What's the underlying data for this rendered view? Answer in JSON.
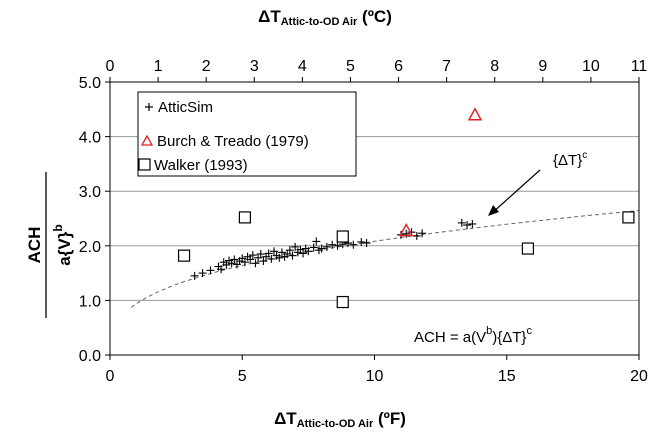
{
  "chart_data": {
    "type": "scatter",
    "title": "",
    "x_bottom": {
      "label_main": "ΔT",
      "label_sub": "Attic-to-OD Air",
      "label_unit": " (ºF)",
      "range": [
        0,
        20
      ],
      "ticks": [
        "0",
        "5",
        "10",
        "15",
        "20"
      ]
    },
    "x_top": {
      "label_main": "ΔT",
      "label_sub": "Attic-to-OD Air",
      "label_unit": " (ºC)",
      "range": [
        0,
        11
      ],
      "ticks": [
        "0",
        "1",
        "2",
        "3",
        "4",
        "5",
        "6",
        "7",
        "8",
        "9",
        "10",
        "11"
      ]
    },
    "y": {
      "label_num": "ACH",
      "label_den_main": "a{V}",
      "label_den_sup": "b",
      "range": [
        0,
        5
      ],
      "ticks": [
        "0.0",
        "1.0",
        "2.0",
        "3.0",
        "4.0",
        "5.0"
      ]
    },
    "legend": {
      "placement": "top-left",
      "entries": [
        {
          "marker": "plus",
          "label": "AtticSim"
        },
        {
          "marker": "triangle",
          "label": "Burch & Treado (1979)"
        },
        {
          "marker": "square",
          "label": "Walker (1993)"
        }
      ]
    },
    "colors": {
      "burch": "#e02020",
      "atticsim": "#000000",
      "walker": "#000000",
      "fit": "#666666"
    },
    "annotations": {
      "arrow_label_main": "{ΔT}",
      "arrow_label_sup": "c",
      "equation_main": "ACH = a(V",
      "equation_b": "b",
      "equation_mid": "){ΔT}",
      "equation_c": "c"
    },
    "fit": {
      "x_start": 0.8,
      "x_end": 20.0,
      "exponent": 0.345,
      "coef": 0.941
    },
    "series": [
      {
        "name": "AtticSim",
        "marker": "plus",
        "points": [
          [
            3.2,
            1.45
          ],
          [
            3.5,
            1.5
          ],
          [
            3.8,
            1.55
          ],
          [
            4.1,
            1.62
          ],
          [
            4.2,
            1.57
          ],
          [
            4.3,
            1.7
          ],
          [
            4.4,
            1.65
          ],
          [
            4.5,
            1.73
          ],
          [
            4.6,
            1.68
          ],
          [
            4.7,
            1.75
          ],
          [
            4.8,
            1.66
          ],
          [
            4.9,
            1.72
          ],
          [
            5.0,
            1.77
          ],
          [
            5.1,
            1.7
          ],
          [
            5.2,
            1.8
          ],
          [
            5.3,
            1.75
          ],
          [
            5.4,
            1.83
          ],
          [
            5.5,
            1.68
          ],
          [
            5.6,
            1.78
          ],
          [
            5.7,
            1.85
          ],
          [
            5.8,
            1.72
          ],
          [
            5.9,
            1.8
          ],
          [
            6.0,
            1.86
          ],
          [
            6.1,
            1.76
          ],
          [
            6.2,
            1.9
          ],
          [
            6.3,
            1.82
          ],
          [
            6.4,
            1.78
          ],
          [
            6.5,
            1.88
          ],
          [
            6.6,
            1.8
          ],
          [
            6.7,
            1.85
          ],
          [
            6.8,
            1.92
          ],
          [
            6.9,
            1.82
          ],
          [
            7.0,
            1.98
          ],
          [
            7.1,
            1.88
          ],
          [
            7.2,
            1.93
          ],
          [
            7.3,
            1.86
          ],
          [
            7.4,
            1.95
          ],
          [
            7.5,
            1.9
          ],
          [
            7.7,
            1.97
          ],
          [
            7.8,
            2.08
          ],
          [
            7.9,
            1.92
          ],
          [
            8.0,
            1.95
          ],
          [
            8.2,
            1.98
          ],
          [
            8.4,
            2.02
          ],
          [
            8.6,
            2.0
          ],
          [
            8.8,
            2.03
          ],
          [
            9.0,
            2.05
          ],
          [
            9.2,
            2.02
          ],
          [
            9.5,
            2.07
          ],
          [
            9.7,
            2.05
          ],
          [
            11.0,
            2.2
          ],
          [
            11.2,
            2.22
          ],
          [
            11.4,
            2.25
          ],
          [
            11.6,
            2.18
          ],
          [
            11.8,
            2.23
          ],
          [
            13.3,
            2.42
          ],
          [
            13.5,
            2.38
          ],
          [
            13.7,
            2.4
          ]
        ]
      },
      {
        "name": "Burch & Treado (1979)",
        "marker": "triangle",
        "points": [
          [
            11.2,
            2.28
          ],
          [
            13.8,
            4.4
          ]
        ]
      },
      {
        "name": "Walker (1993)",
        "marker": "square",
        "points": [
          [
            2.8,
            1.82
          ],
          [
            5.1,
            2.52
          ],
          [
            8.8,
            2.17
          ],
          [
            8.8,
            0.97
          ],
          [
            15.8,
            1.95
          ],
          [
            19.6,
            2.52
          ]
        ]
      }
    ]
  }
}
